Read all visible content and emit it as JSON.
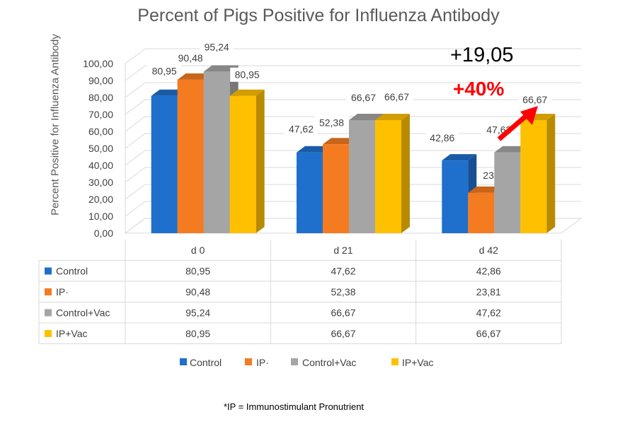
{
  "chart_data": {
    "type": "bar",
    "title": "Percent of Pigs Positive for Influenza Antibody",
    "ylabel": "Percent Positive for Influenza Antibody",
    "xlabel": "",
    "ylim": [
      0,
      100
    ],
    "ytick_step": 10,
    "grid": true,
    "legend_position": "bottom",
    "categories": [
      "d 0",
      "d 21",
      "d 42"
    ],
    "series": [
      {
        "name": "Control",
        "values": [
          80.95,
          47.62,
          42.86
        ],
        "color": "#1f6fcc",
        "labels": [
          "80,95",
          "47,62",
          "42,86"
        ]
      },
      {
        "name": "IP·",
        "values": [
          90.48,
          52.38,
          23.81
        ],
        "color": "#f47b20",
        "labels": [
          "90,48",
          "52,38",
          "23,81"
        ]
      },
      {
        "name": "Control+Vac",
        "values": [
          95.24,
          66.67,
          47.62
        ],
        "color": "#a5a5a5",
        "labels": [
          "95,24",
          "66,67",
          "47,62"
        ]
      },
      {
        "name": "IP+Vac",
        "values": [
          80.95,
          66.67,
          66.67
        ],
        "color": "#ffc000",
        "labels": [
          "80,95",
          "66,67",
          "66,67"
        ]
      }
    ],
    "ytick_labels": [
      "0,00",
      "10,00",
      "20,00",
      "30,00",
      "40,00",
      "50,00",
      "60,00",
      "70,00",
      "80,00",
      "90,00",
      "100,00"
    ],
    "annotations": {
      "difference": "+19,05",
      "percent_increase": "+40%",
      "arrow_color": "#ff0000"
    },
    "data_table": {
      "series_labels": [
        "Control",
        "IP·",
        "Control+Vac",
        "IP+Vac"
      ],
      "rows": [
        [
          "80,95",
          "47,62",
          "42,86"
        ],
        [
          "90,48",
          "52,38",
          "23,81"
        ],
        [
          "95,24",
          "66,67",
          "47,62"
        ],
        [
          "80,95",
          "66,67",
          "66,67"
        ]
      ]
    }
  },
  "footnote": "*IP = Immunostimulant Pronutrient"
}
